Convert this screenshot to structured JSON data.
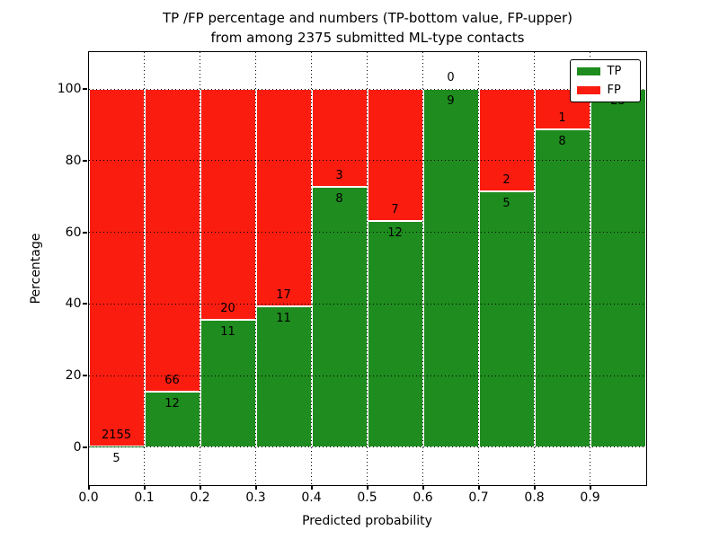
{
  "chart_data": {
    "type": "bar",
    "stacked": true,
    "title_lines": [
      "TP /FP percentage and numbers (TP-bottom value, FP-upper)",
      "from among 2375 submitted ML-type contacts"
    ],
    "xlabel": "Predicted probability",
    "ylabel": "Percentage",
    "xlim": [
      0.0,
      1.0
    ],
    "ylim": [
      -10.5,
      110.5
    ],
    "x_ticks": [
      "0.0",
      "0.1",
      "0.2",
      "0.3",
      "0.4",
      "0.5",
      "0.6",
      "0.7",
      "0.8",
      "0.9"
    ],
    "y_ticks": [
      "0",
      "20",
      "40",
      "60",
      "80",
      "100"
    ],
    "grid": "dotted-black-both-axes",
    "total_contacts": 2375,
    "legend": {
      "position": "upper-right",
      "entries": [
        {
          "label": "TP",
          "color": "#1e8c1e"
        },
        {
          "label": "FP",
          "color": "#fb1c10"
        }
      ]
    },
    "bins": [
      {
        "range": [
          0.0,
          0.1
        ],
        "tp": 5,
        "fp": 2155,
        "tp_pct": 0.23
      },
      {
        "range": [
          0.1,
          0.2
        ],
        "tp": 12,
        "fp": 66,
        "tp_pct": 15.38
      },
      {
        "range": [
          0.2,
          0.3
        ],
        "tp": 11,
        "fp": 20,
        "tp_pct": 35.48
      },
      {
        "range": [
          0.3,
          0.4
        ],
        "tp": 11,
        "fp": 17,
        "tp_pct": 39.29
      },
      {
        "range": [
          0.4,
          0.5
        ],
        "tp": 8,
        "fp": 3,
        "tp_pct": 72.73
      },
      {
        "range": [
          0.5,
          0.6
        ],
        "tp": 12,
        "fp": 7,
        "tp_pct": 63.16
      },
      {
        "range": [
          0.6,
          0.7
        ],
        "tp": 9,
        "fp": 0,
        "tp_pct": 100
      },
      {
        "range": [
          0.7,
          0.8
        ],
        "tp": 5,
        "fp": 2,
        "tp_pct": 71.43
      },
      {
        "range": [
          0.8,
          0.9
        ],
        "tp": 8,
        "fp": 1,
        "tp_pct": 88.89
      },
      {
        "range": [
          0.9,
          1.0
        ],
        "tp": 23,
        "fp": 0,
        "tp_pct": 100
      }
    ],
    "colors": {
      "tp": "#1e8c1e",
      "fp": "#fb1c10",
      "text": "#000000",
      "background": "#ffffff"
    }
  }
}
